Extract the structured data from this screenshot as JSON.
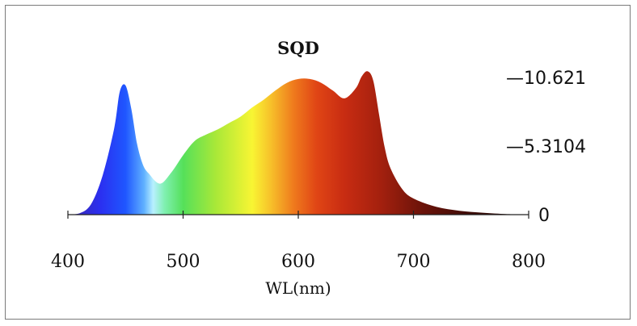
{
  "chart_data": {
    "type": "area",
    "title": "SQD",
    "xlabel": "WL(nm)",
    "ylabel": "",
    "xlim": [
      400,
      800
    ],
    "ylim": [
      0,
      10.621
    ],
    "x_ticks": [
      400,
      500,
      600,
      700,
      800
    ],
    "y_ticks": [
      {
        "value": 10.621,
        "label": "—10.621"
      },
      {
        "value": 5.3104,
        "label": "—5.3104"
      },
      {
        "value": 0,
        "label": "0"
      }
    ],
    "fill": "spectral wavelength color gradient",
    "grid": false,
    "series": [
      {
        "x": [
          400,
          410,
          420,
          430,
          440,
          445,
          450,
          455,
          460,
          465,
          470,
          480,
          490,
          500,
          510,
          520,
          530,
          540,
          550,
          560,
          570,
          580,
          590,
          600,
          610,
          620,
          630,
          640,
          650,
          655,
          660,
          665,
          670,
          675,
          680,
          690,
          700,
          720,
          740,
          760,
          780,
          790,
          800
        ],
        "y": [
          0,
          0.1,
          0.8,
          3.0,
          6.6,
          9.5,
          10.0,
          8.2,
          5.5,
          3.9,
          3.2,
          2.4,
          3.3,
          4.6,
          5.7,
          6.2,
          6.6,
          7.1,
          7.6,
          8.3,
          8.9,
          9.6,
          10.2,
          10.5,
          10.5,
          10.2,
          9.6,
          9.0,
          9.8,
          10.7,
          11.1,
          10.4,
          7.8,
          5.2,
          3.6,
          2.0,
          1.25,
          0.6,
          0.3,
          0.15,
          0.05,
          0.02,
          0
        ]
      }
    ]
  }
}
